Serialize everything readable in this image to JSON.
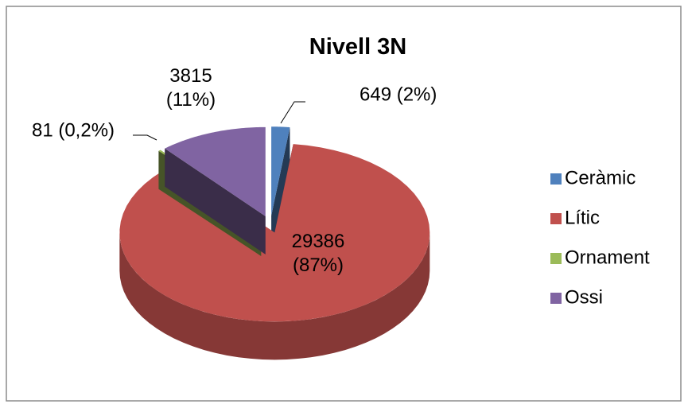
{
  "chart_data": {
    "type": "pie",
    "title": "Nivell 3N",
    "categories": [
      "Ceràmic",
      "Lític",
      "Ornament",
      "Ossi"
    ],
    "values": [
      649,
      29386,
      81,
      3815
    ],
    "value_labels": [
      "649  (2%)",
      "29386\n(87%)",
      "81  (0,2%)",
      "3815\n(11%)"
    ],
    "colors": [
      "#4f81bd",
      "#c0504d",
      "#9bbb59",
      "#8064a2"
    ],
    "legend": "right"
  }
}
